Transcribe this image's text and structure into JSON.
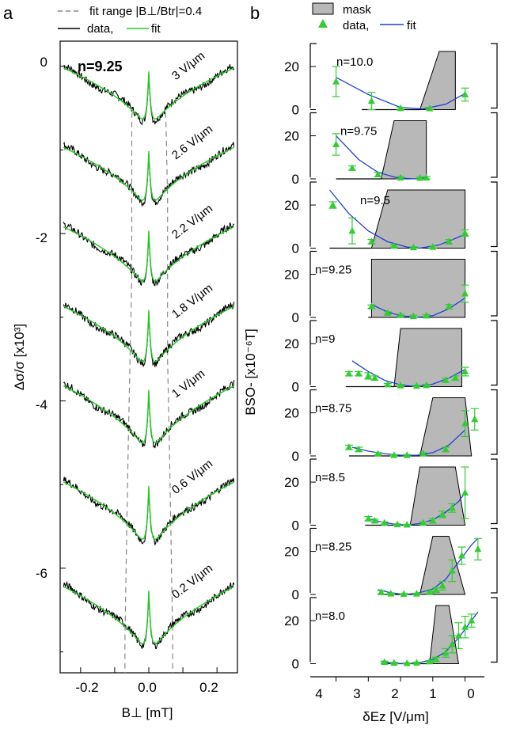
{
  "panel_a": {
    "letter": "a",
    "legend_range": "fit range |B⊥/Btr|=0.4",
    "legend_data": "data,",
    "legend_fit": "fit",
    "density_label": "n=9.25",
    "xlabel": "B⊥ [mT]",
    "ylabel": "Δσ/σ [x10³]",
    "xtick_labels": [
      "-0.2",
      "0.0",
      "0.2"
    ],
    "ytick_labels": [
      "0",
      "-2",
      "-4",
      "-6"
    ]
  },
  "panel_b": {
    "letter": "b",
    "legend_mask": "mask",
    "legend_data": "data,",
    "legend_fit": "fit",
    "xlabel": "δEz [V/μm]",
    "ylabel": "BSO- [x10⁻⁶T]",
    "xtick_labels": [
      "4",
      "3",
      "2",
      "1",
      "0"
    ],
    "ytick_labels": [
      "0",
      "20"
    ]
  },
  "colors": {
    "data": "#000000",
    "fit": "#22cc22",
    "fit_b": "#1f3fd6",
    "points": "#33cc33",
    "mask": "#b8b8b8"
  },
  "chart_data": [
    {
      "type": "line",
      "title": "n=9.25",
      "xlabel": "B⊥ [mT]",
      "ylabel": "Δσ/σ [x10³]",
      "xlim": [
        -0.26,
        0.26
      ],
      "ylim": [
        -7.25,
        0.3
      ],
      "fit_range_lines": [
        [
          -0.05,
          0.05
        ],
        [
          -0.05,
          0.055
        ],
        [
          -0.05,
          0.055
        ],
        [
          -0.055,
          0.055
        ],
        [
          -0.06,
          0.06
        ],
        [
          -0.065,
          0.065
        ],
        [
          -0.07,
          0.07
        ]
      ],
      "series": [
        {
          "label": "3 V/μm",
          "offset": 0.0,
          "depth": 0.85
        },
        {
          "label": "2.6 V/μm",
          "offset": -0.95,
          "depth": 0.88
        },
        {
          "label": "2.2 V/μm",
          "offset": -1.9,
          "depth": 0.9
        },
        {
          "label": "1.8 V/μm",
          "offset": -2.85,
          "depth": 0.92
        },
        {
          "label": "1 V/μm",
          "offset": -3.8,
          "depth": 0.95
        },
        {
          "label": "0.6 V/μm",
          "offset": -4.95,
          "depth": 0.95
        },
        {
          "label": "0.2 V/μm",
          "offset": -6.2,
          "depth": 0.95
        }
      ]
    },
    {
      "type": "scatter",
      "xlabel": "δEz [V/μm]",
      "ylabel": "BSO- [x10⁻⁶T]",
      "xlim": [
        4.8,
        -0.6
      ],
      "ylim": [
        0,
        27
      ],
      "panels": [
        {
          "label": "n=10.0",
          "mask": [
            [
              1.4,
              0
            ],
            [
              0.8,
              27
            ],
            [
              0.3,
              27
            ],
            [
              0.3,
              0
            ]
          ],
          "base_from": 3.2,
          "points": [
            [
              4.0,
              13,
              7
            ],
            [
              2.9,
              4,
              4
            ],
            [
              2.0,
              0.6,
              0.5
            ],
            [
              1.1,
              0.5,
              0.5
            ],
            [
              0.0,
              7,
              3
            ]
          ],
          "fit": [
            [
              4.0,
              15
            ],
            [
              3.0,
              7
            ],
            [
              2.0,
              1
            ],
            [
              1.3,
              0.3
            ],
            [
              0.6,
              2.5
            ],
            [
              0.0,
              7.5
            ]
          ]
        },
        {
          "label": "n=9.75",
          "mask": [
            [
              2.6,
              0
            ],
            [
              2.2,
              27
            ],
            [
              1.2,
              27
            ],
            [
              1.2,
              0
            ]
          ],
          "base_from": 4.0,
          "points": [
            [
              4.0,
              16,
              5
            ],
            [
              3.5,
              5,
              1
            ],
            [
              2.7,
              2,
              1
            ],
            [
              2.0,
              0.5,
              0.5
            ],
            [
              1.4,
              0.4,
              0.4
            ],
            [
              1.2,
              0.5,
              0.5
            ]
          ],
          "fit": [
            [
              4.0,
              20
            ],
            [
              3.3,
              9
            ],
            [
              2.7,
              3
            ],
            [
              2.1,
              0.5
            ],
            [
              1.6,
              0
            ],
            [
              1.2,
              0.5
            ]
          ]
        },
        {
          "label": "n=9.5",
          "mask": [
            [
              2.9,
              0
            ],
            [
              2.4,
              27
            ],
            [
              0.0,
              27
            ],
            [
              0.0,
              0
            ]
          ],
          "base_from": 4.2,
          "points": [
            [
              4.1,
              20,
              1.5
            ],
            [
              3.5,
              8,
              6
            ],
            [
              2.9,
              3,
              1
            ],
            [
              2.2,
              1,
              0.5
            ],
            [
              1.6,
              0.3,
              0.3
            ],
            [
              1.0,
              0.5,
              0.5
            ],
            [
              0.5,
              3,
              1
            ],
            [
              0.0,
              7,
              1.5
            ]
          ],
          "fit": [
            [
              4.2,
              27
            ],
            [
              3.6,
              16
            ],
            [
              3.0,
              8
            ],
            [
              2.4,
              3
            ],
            [
              1.8,
              0.5
            ],
            [
              1.4,
              0
            ],
            [
              0.8,
              1.5
            ],
            [
              0.3,
              4.5
            ],
            [
              0.0,
              6.5
            ]
          ]
        },
        {
          "label": "n=9.25",
          "mask": [
            [
              2.9,
              0
            ],
            [
              2.9,
              27
            ],
            [
              0.0,
              27
            ],
            [
              0.0,
              0
            ]
          ],
          "base_from": 3.0,
          "points": [
            [
              2.9,
              5,
              0.8
            ],
            [
              2.4,
              2,
              0.6
            ],
            [
              2.0,
              1,
              0.5
            ],
            [
              1.6,
              0.5,
              0.5
            ],
            [
              1.2,
              0.8,
              0.5
            ],
            [
              0.5,
              5,
              1
            ],
            [
              0.0,
              11,
              4
            ]
          ],
          "fit": [
            [
              2.9,
              6
            ],
            [
              2.4,
              2.5
            ],
            [
              2.0,
              0.8
            ],
            [
              1.5,
              0
            ],
            [
              1.0,
              0.8
            ],
            [
              0.5,
              4
            ],
            [
              0.0,
              9
            ]
          ]
        },
        {
          "label": "n=9",
          "mask": [
            [
              2.2,
              0
            ],
            [
              2.0,
              27
            ],
            [
              0.1,
              27
            ],
            [
              0.1,
              0
            ]
          ],
          "base_from": 3.7,
          "points": [
            [
              3.6,
              6,
              1
            ],
            [
              3.3,
              6,
              1
            ],
            [
              3.0,
              5,
              1.5
            ],
            [
              2.8,
              4,
              1
            ],
            [
              2.4,
              1,
              0.5
            ],
            [
              2.0,
              0.5,
              0.5
            ],
            [
              1.5,
              0.3,
              0.3
            ],
            [
              1.2,
              0.6,
              0.5
            ],
            [
              0.6,
              3,
              1
            ],
            [
              0.3,
              4,
              1
            ],
            [
              0.0,
              7,
              2
            ]
          ],
          "fit": [
            [
              3.5,
              12
            ],
            [
              3.0,
              7
            ],
            [
              2.5,
              3
            ],
            [
              2.0,
              0.8
            ],
            [
              1.5,
              0
            ],
            [
              1.0,
              1.2
            ],
            [
              0.5,
              4
            ],
            [
              0.0,
              8
            ]
          ]
        },
        {
          "label": "n=8.75",
          "mask": [
            [
              1.4,
              0
            ],
            [
              1.0,
              27
            ],
            [
              0.0,
              27
            ],
            [
              -0.2,
              0
            ]
          ],
          "base_from": 3.6,
          "points": [
            [
              3.6,
              4,
              1
            ],
            [
              3.3,
              3,
              1
            ],
            [
              2.7,
              1,
              0.5
            ],
            [
              2.2,
              0.3,
              0.3
            ],
            [
              1.8,
              0.3,
              0.3
            ],
            [
              1.3,
              1,
              0.5
            ],
            [
              0.6,
              3,
              1
            ],
            [
              0.0,
              15,
              6
            ],
            [
              -0.3,
              17,
              5
            ]
          ],
          "fit": [
            [
              3.5,
              4
            ],
            [
              3.0,
              2.2
            ],
            [
              2.5,
              1
            ],
            [
              2.0,
              0.3
            ],
            [
              1.5,
              0.3
            ],
            [
              1.0,
              1.5
            ],
            [
              0.5,
              5
            ],
            [
              0.0,
              12
            ]
          ]
        },
        {
          "label": "n=8.5",
          "mask": [
            [
              1.7,
              0
            ],
            [
              1.4,
              27
            ],
            [
              0.3,
              27
            ],
            [
              0.0,
              0
            ]
          ],
          "base_from": 3.1,
          "points": [
            [
              3.0,
              3,
              1
            ],
            [
              2.8,
              2,
              0.8
            ],
            [
              2.5,
              1,
              0.5
            ],
            [
              2.1,
              0.3,
              0.3
            ],
            [
              1.8,
              0.2,
              0.2
            ],
            [
              1.3,
              1,
              0.5
            ],
            [
              1.0,
              2,
              1
            ],
            [
              0.7,
              5,
              1.5
            ],
            [
              0.4,
              8,
              2
            ],
            [
              0.0,
              15,
              12
            ]
          ],
          "fit": [
            [
              3.0,
              3
            ],
            [
              2.6,
              1.5
            ],
            [
              2.2,
              0.5
            ],
            [
              1.8,
              0
            ],
            [
              1.4,
              0.8
            ],
            [
              1.0,
              2.5
            ],
            [
              0.6,
              6
            ],
            [
              0.2,
              11
            ],
            [
              0.0,
              15
            ]
          ]
        },
        {
          "label": "n=8.25",
          "mask": [
            [
              1.4,
              0
            ],
            [
              1.0,
              27
            ],
            [
              0.5,
              27
            ],
            [
              0.0,
              0
            ]
          ],
          "base_from": 2.7,
          "points": [
            [
              2.6,
              1,
              0.8
            ],
            [
              2.3,
              0.3,
              0.3
            ],
            [
              1.9,
              0.2,
              0.2
            ],
            [
              1.5,
              0.3,
              0.3
            ],
            [
              1.1,
              1,
              0.5
            ],
            [
              0.9,
              2,
              1
            ],
            [
              0.7,
              4,
              2
            ],
            [
              0.4,
              11,
              5
            ],
            [
              0.1,
              18,
              4
            ],
            [
              -0.4,
              21,
              5
            ]
          ],
          "fit": [
            [
              2.7,
              2.2
            ],
            [
              2.3,
              0.8
            ],
            [
              1.9,
              0
            ],
            [
              1.5,
              0.5
            ],
            [
              1.0,
              2.5
            ],
            [
              0.6,
              7
            ],
            [
              0.2,
              15
            ],
            [
              -0.2,
              23
            ],
            [
              -0.4,
              26
            ]
          ]
        },
        {
          "label": "n=8.0",
          "mask": [
            [
              1.1,
              0
            ],
            [
              0.9,
              27
            ],
            [
              0.5,
              27
            ],
            [
              0.2,
              0
            ]
          ],
          "base_from": 2.6,
          "points": [
            [
              2.5,
              0.7,
              0.5
            ],
            [
              2.2,
              0.3,
              0.3
            ],
            [
              1.8,
              0.2,
              0.2
            ],
            [
              1.5,
              0.4,
              0.3
            ],
            [
              1.1,
              1,
              0.5
            ],
            [
              0.9,
              2,
              1
            ],
            [
              0.6,
              5,
              2
            ],
            [
              0.4,
              9,
              4
            ],
            [
              0.2,
              13,
              6
            ],
            [
              0.0,
              17,
              5
            ],
            [
              -0.2,
              20,
              3
            ]
          ],
          "fit": [
            [
              2.6,
              1
            ],
            [
              2.2,
              0.2
            ],
            [
              1.8,
              0
            ],
            [
              1.4,
              0.5
            ],
            [
              1.0,
              2
            ],
            [
              0.6,
              5.5
            ],
            [
              0.2,
              12
            ],
            [
              -0.2,
              20
            ],
            [
              -0.4,
              24
            ]
          ]
        }
      ]
    }
  ]
}
